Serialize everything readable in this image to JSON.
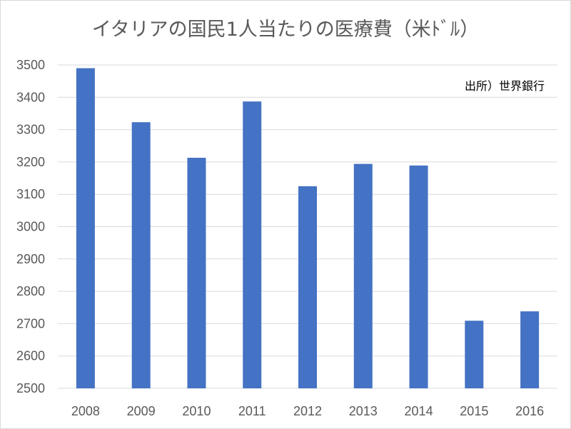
{
  "chart_data": {
    "type": "bar",
    "title": "イタリアの国民1人当たりの医療費（米ﾄﾞﾙ）",
    "annotation": "出所）世界銀行",
    "categories": [
      "2008",
      "2009",
      "2010",
      "2011",
      "2012",
      "2013",
      "2014",
      "2015",
      "2016"
    ],
    "values": [
      3490,
      3323,
      3213,
      3387,
      3125,
      3194,
      3189,
      2709,
      2738
    ],
    "ylim": [
      2500,
      3500
    ],
    "yticks": [
      2500,
      2600,
      2700,
      2800,
      2900,
      3000,
      3100,
      3200,
      3300,
      3400,
      3500
    ],
    "xlabel": "",
    "ylabel": "",
    "grid": true,
    "legend": "none",
    "colors": {
      "bar": "#4472C4",
      "grid": "#d9d9d9",
      "tick_text": "#595959"
    }
  }
}
